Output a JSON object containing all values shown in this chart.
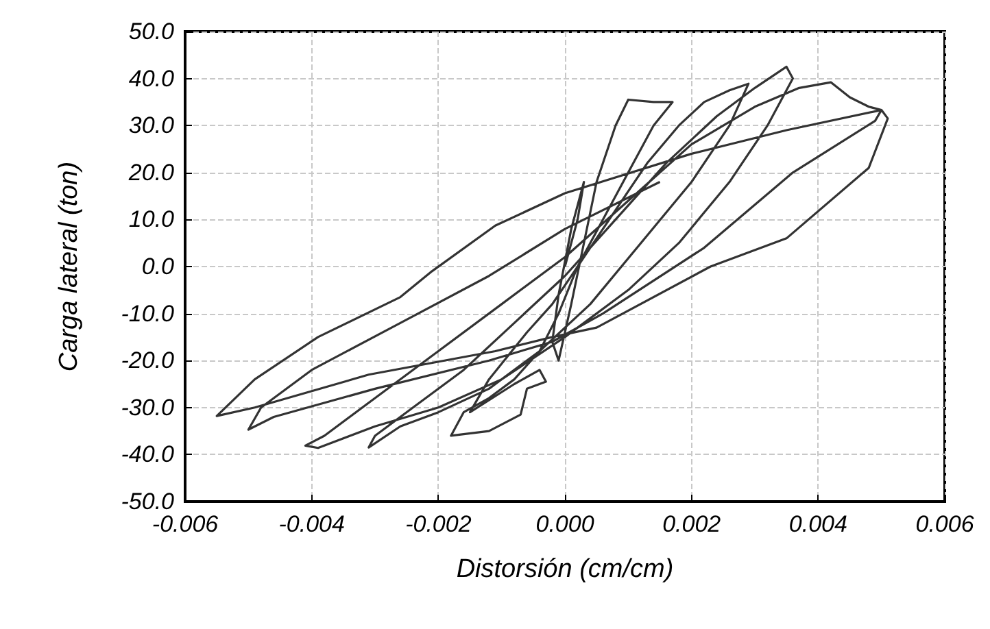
{
  "chart_data": {
    "type": "line",
    "xlabel": "Distorsión (cm/cm)",
    "ylabel": "Carga lateral (ton)",
    "xlim": [
      -0.006,
      0.006
    ],
    "ylim": [
      -50,
      50
    ],
    "xticks": [
      {
        "value": -0.006,
        "label": "-0.006"
      },
      {
        "value": -0.004,
        "label": "-0.004"
      },
      {
        "value": -0.002,
        "label": "-0.002"
      },
      {
        "value": 0,
        "label": "0.000"
      },
      {
        "value": 0.002,
        "label": "0.002"
      },
      {
        "value": 0.004,
        "label": "0.004"
      },
      {
        "value": 0.006,
        "label": "0.006"
      }
    ],
    "yticks": [
      {
        "value": -50,
        "label": "-50.0"
      },
      {
        "value": -40,
        "label": "-40.0"
      },
      {
        "value": -30,
        "label": "-30.0"
      },
      {
        "value": -20,
        "label": "-20.0"
      },
      {
        "value": -10,
        "label": "-10.0"
      },
      {
        "value": 0,
        "label": "0.0"
      },
      {
        "value": 10,
        "label": "10.0"
      },
      {
        "value": 20,
        "label": "20.0"
      },
      {
        "value": 30,
        "label": "30.0"
      },
      {
        "value": 40,
        "label": "40.0"
      },
      {
        "value": 50,
        "label": "50.0"
      }
    ],
    "grid": true,
    "marker": "none",
    "line_style": "solid",
    "series": [
      {
        "color": "#333333",
        "x": [
          0,
          0.0002,
          0.0003,
          0.0001,
          -0.0001,
          -0.0002,
          -0.0001,
          0.0001,
          0.0003,
          0.0005,
          0.0008,
          0.001,
          0.0014,
          0.0017,
          0.0014,
          0.001,
          0.0006,
          0.0002,
          -0.0001,
          -0.0004,
          -0.0008,
          -0.0012,
          -0.0016,
          -0.0018,
          -0.0012,
          -0.0007,
          -0.0006,
          -0.0003,
          -0.0004,
          -0.0008,
          -0.0015,
          -0.0012,
          -0.0006,
          -0.0002,
          0.0003,
          0.0008,
          0.0013,
          0.0018,
          0.0022,
          0.0026,
          0.0029,
          0.0026,
          0.002,
          0.0012,
          0.0004,
          -0.0004,
          -0.0012,
          -0.002,
          -0.0026,
          -0.0031,
          -0.003,
          -0.0024,
          -0.0016,
          -0.0008,
          0,
          0.0008,
          0.0016,
          0.0024,
          0.003,
          0.0035,
          0.0036,
          0.0032,
          0.0026,
          0.0018,
          0.001,
          0,
          -0.001,
          -0.002,
          -0.003,
          -0.0039,
          -0.0041,
          -0.0038,
          -0.003,
          -0.002,
          -0.001,
          0,
          0.001,
          0.002,
          0.003,
          0.0037,
          0.0042,
          0.0045,
          0.0048,
          0.005,
          0.0051,
          0.0048,
          0.0035,
          0.0023,
          0.0005,
          -0.0002,
          -0.0011,
          -0.0031,
          -0.0049,
          -0.0055,
          -0.0049,
          -0.0039,
          -0.0026,
          -0.0021,
          -0.0011,
          0,
          0.002,
          0.0035,
          0.005,
          0.0049,
          0.0036,
          0.0022,
          0.0006,
          -0.0002,
          -0.0012,
          -0.003,
          -0.0046,
          -0.005,
          -0.0048,
          -0.004,
          -0.0026,
          -0.0012,
          0,
          0.0015
        ],
        "values": [
          0,
          10,
          18,
          8,
          -6,
          -16,
          -20,
          -8,
          5,
          18,
          30,
          35.5,
          35,
          35,
          30,
          20,
          10,
          0,
          -10,
          -18,
          -24,
          -28,
          -31,
          -36,
          -35,
          -31.5,
          -26,
          -24.5,
          -22,
          -25,
          -31,
          -24,
          -14,
          -8,
          2,
          12,
          22,
          30,
          35,
          37.5,
          38.9,
          30,
          18,
          5,
          -8,
          -18,
          -26,
          -31,
          -34,
          -38.5,
          -36,
          -30,
          -22,
          -12,
          -2,
          10,
          22,
          32,
          38,
          42.5,
          40,
          30,
          18,
          5,
          -5,
          -15,
          -24,
          -30,
          -34,
          -38.6,
          -38.1,
          -36,
          -28,
          -18,
          -8,
          2,
          14,
          26,
          34,
          38,
          39.2,
          36,
          34,
          33.3,
          31.5,
          21,
          6,
          0,
          -13,
          -15,
          -18,
          -23,
          -30,
          -31.8,
          -24,
          -15,
          -6.5,
          -1,
          8.7,
          15.6,
          24,
          29,
          33.3,
          31,
          20,
          4,
          -10,
          -16,
          -20,
          -26,
          -32,
          -34.7,
          -30,
          -22,
          -12,
          -2,
          8,
          18
        ]
      }
    ]
  }
}
